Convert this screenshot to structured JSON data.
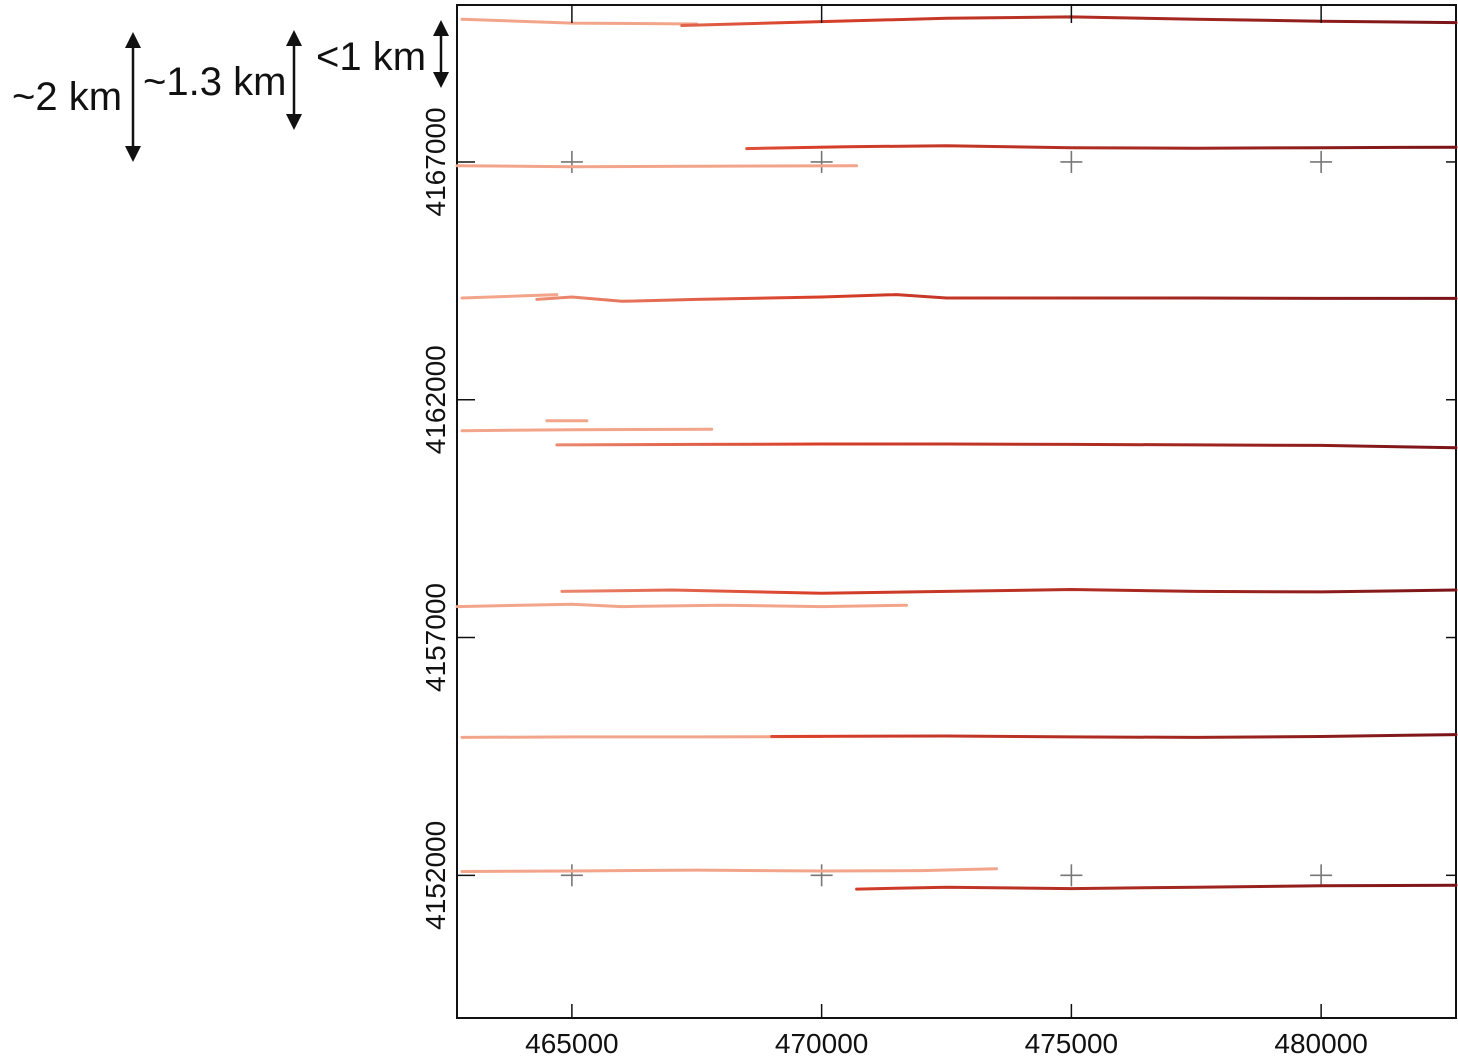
{
  "scale_annotations": [
    {
      "label": "~2 km"
    },
    {
      "label": "~1.3 km"
    },
    {
      "label": "<1 km"
    }
  ],
  "chart_data": {
    "type": "line",
    "title": "",
    "xlabel": "",
    "ylabel": "",
    "xlim": [
      462700,
      482700
    ],
    "ylim": [
      4149000,
      4170300
    ],
    "xticks": [
      465000,
      470000,
      475000,
      480000
    ],
    "yticks": [
      4152000,
      4157000,
      4162000,
      4167000
    ],
    "xtick_labels": [
      "465000",
      "470000",
      "475000",
      "480000"
    ],
    "ytick_labels": [
      "4152000",
      "4157000",
      "4162000",
      "4167000"
    ],
    "grid": "crosses",
    "colors": {
      "light": "#f2a58a",
      "mid": "#d9402a",
      "dark": "#7a1418"
    },
    "grid_crosses": [
      [
        465000,
        4167000
      ],
      [
        470000,
        4167000
      ],
      [
        475000,
        4167000
      ],
      [
        480000,
        4167000
      ],
      [
        465000,
        4152000
      ],
      [
        470000,
        4152000
      ],
      [
        475000,
        4152000
      ],
      [
        480000,
        4152000
      ]
    ],
    "series": [
      {
        "shade": "light",
        "points": [
          [
            462800,
            4170000
          ],
          [
            465000,
            4169920
          ],
          [
            467500,
            4169900
          ]
        ]
      },
      {
        "shade": "mid",
        "points": [
          [
            467200,
            4169870
          ],
          [
            470000,
            4169950
          ],
          [
            472500,
            4170020
          ],
          [
            475000,
            4170050
          ],
          [
            477500,
            4170000
          ],
          [
            480000,
            4169960
          ],
          [
            482700,
            4169930
          ]
        ]
      },
      {
        "shade": "light",
        "points": [
          [
            462700,
            4166920
          ],
          [
            465000,
            4166900
          ],
          [
            467500,
            4166910
          ],
          [
            470700,
            4166920
          ]
        ]
      },
      {
        "shade": "mid",
        "points": [
          [
            468500,
            4167280
          ],
          [
            470500,
            4167320
          ],
          [
            472500,
            4167340
          ],
          [
            475000,
            4167300
          ],
          [
            477500,
            4167290
          ],
          [
            480000,
            4167300
          ],
          [
            482700,
            4167310
          ]
        ]
      },
      {
        "shade": "light",
        "points": [
          [
            462800,
            4164140
          ],
          [
            464700,
            4164210
          ]
        ]
      },
      {
        "shade": "mid",
        "points": [
          [
            464300,
            4164110
          ],
          [
            465000,
            4164160
          ],
          [
            466000,
            4164070
          ],
          [
            467500,
            4164110
          ],
          [
            470000,
            4164160
          ],
          [
            471500,
            4164210
          ],
          [
            472500,
            4164140
          ],
          [
            475000,
            4164140
          ],
          [
            477500,
            4164140
          ],
          [
            480000,
            4164130
          ],
          [
            482700,
            4164130
          ]
        ]
      },
      {
        "shade": "light",
        "points": [
          [
            462800,
            4161350
          ],
          [
            465000,
            4161370
          ],
          [
            467800,
            4161380
          ]
        ]
      },
      {
        "shade": "light",
        "points": [
          [
            464500,
            4161560
          ],
          [
            465300,
            4161560
          ]
        ]
      },
      {
        "shade": "mid",
        "points": [
          [
            464700,
            4161050
          ],
          [
            467500,
            4161060
          ],
          [
            470000,
            4161070
          ],
          [
            472500,
            4161070
          ],
          [
            475000,
            4161060
          ],
          [
            477500,
            4161050
          ],
          [
            480000,
            4161040
          ],
          [
            482700,
            4160990
          ]
        ]
      },
      {
        "shade": "light",
        "points": [
          [
            462700,
            4157650
          ],
          [
            465000,
            4157700
          ],
          [
            466000,
            4157650
          ],
          [
            468000,
            4157680
          ],
          [
            470000,
            4157650
          ],
          [
            471700,
            4157680
          ]
        ]
      },
      {
        "shade": "mid",
        "points": [
          [
            464800,
            4157970
          ],
          [
            467000,
            4158000
          ],
          [
            470000,
            4157930
          ],
          [
            472500,
            4157970
          ],
          [
            475000,
            4158010
          ],
          [
            477500,
            4157970
          ],
          [
            480000,
            4157960
          ],
          [
            482700,
            4158000
          ]
        ]
      },
      {
        "shade": "light",
        "points": [
          [
            462800,
            4154900
          ],
          [
            465000,
            4154910
          ],
          [
            467500,
            4154910
          ],
          [
            470000,
            4154920
          ]
        ]
      },
      {
        "shade": "mid",
        "points": [
          [
            469000,
            4154920
          ],
          [
            472500,
            4154930
          ],
          [
            475000,
            4154910
          ],
          [
            477500,
            4154900
          ],
          [
            480000,
            4154920
          ],
          [
            482700,
            4154960
          ]
        ]
      },
      {
        "shade": "light",
        "points": [
          [
            462800,
            4152080
          ],
          [
            465000,
            4152090
          ],
          [
            467500,
            4152110
          ],
          [
            470000,
            4152090
          ],
          [
            472000,
            4152100
          ],
          [
            473500,
            4152140
          ]
        ]
      },
      {
        "shade": "mid",
        "points": [
          [
            470700,
            4151710
          ],
          [
            472500,
            4151750
          ],
          [
            475000,
            4151720
          ],
          [
            477500,
            4151750
          ],
          [
            480000,
            4151780
          ],
          [
            482700,
            4151790
          ]
        ]
      }
    ]
  }
}
